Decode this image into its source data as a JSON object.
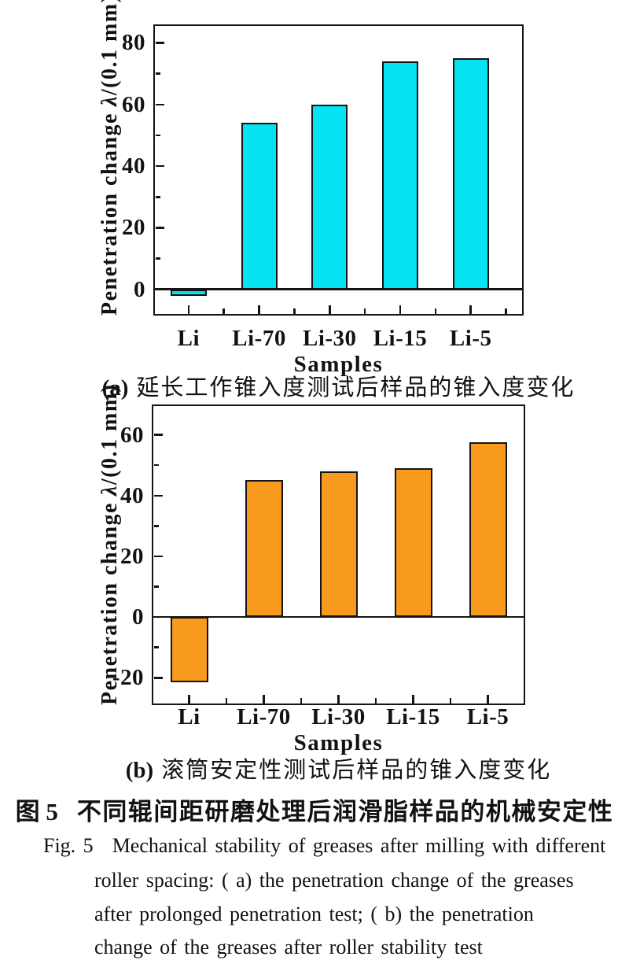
{
  "figure_caption": {
    "cn_label": "图 5",
    "cn_title": "不同辊间距研磨处理后润滑脂样品的机械安定性",
    "en_label": "Fig. 5",
    "en_lines": [
      "Mechanical stability of greases after milling with different",
      "roller spacing: ( a)  the penetration change of the greases",
      "after prolonged penetration test;  ( b)  the penetration",
      "change of the greases after roller stability test"
    ]
  },
  "chart_data": [
    {
      "id": "a",
      "type": "bar",
      "panel": "(a)",
      "panel_caption": "延长工作锥入度测试后样品的锥入度变化",
      "xlabel": "Samples",
      "ylabel": {
        "prefix": "Penetration change",
        "symbol": "λ",
        "suffix": "/(0.1 mm)"
      },
      "categories": [
        "Li",
        "Li-70",
        "Li-30",
        "Li-15",
        "Li-5"
      ],
      "values": [
        -2,
        54,
        60,
        74,
        75
      ],
      "bar_color": "#05e2f2",
      "axis_color": "#141414",
      "ylim": [
        -8.5,
        86
      ],
      "yticks": [
        0,
        20,
        40,
        60,
        80
      ],
      "minor_ytick_step": 10,
      "grid": false,
      "legend": "none"
    },
    {
      "id": "b",
      "type": "bar",
      "panel": "(b)",
      "panel_caption": "滚筒安定性测试后样品的锥入度变化",
      "xlabel": "Samples",
      "ylabel": {
        "prefix": "Penetration change",
        "symbol": "λ",
        "suffix": "/(0.1 mm)"
      },
      "categories": [
        "Li",
        "Li-70",
        "Li-30",
        "Li-15",
        "Li-5"
      ],
      "values": [
        -21.5,
        45,
        48,
        49,
        57.5
      ],
      "bar_color": "#f79a1d",
      "axis_color": "#141414",
      "ylim": [
        -29,
        70
      ],
      "yticks": [
        -20,
        0,
        20,
        40,
        60
      ],
      "minor_ytick_step": 10,
      "grid": false,
      "legend": "none"
    }
  ]
}
